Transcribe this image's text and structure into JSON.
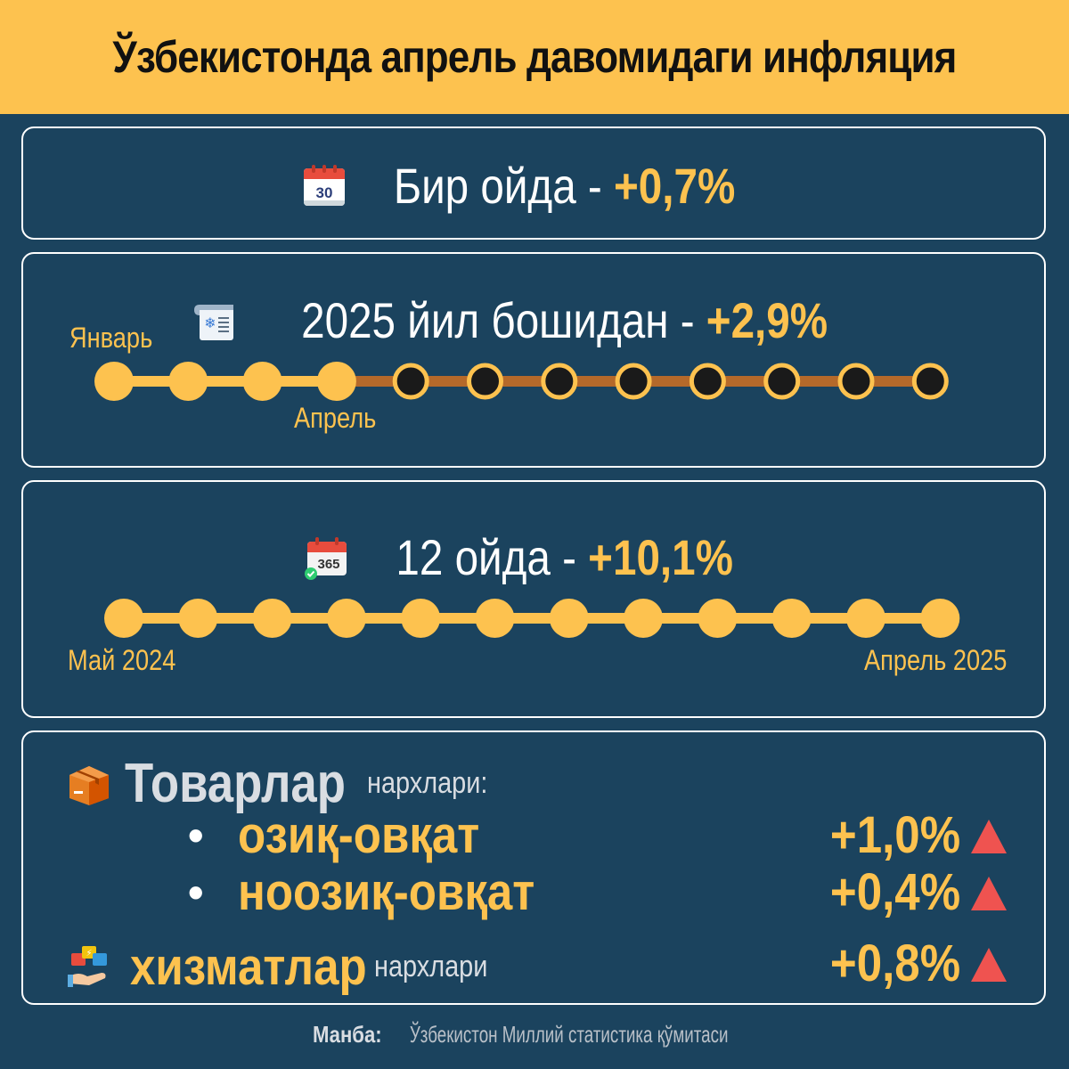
{
  "header": {
    "title": "Ўзбекистонда апрель давомидаги инфляция"
  },
  "monthly": {
    "label": "Бир ойда - ",
    "value": "+0,7%",
    "icon": "calendar-30-icon",
    "calendar_day": "30"
  },
  "ytd": {
    "label": "2025 йил бошидан - ",
    "value": "+2,9%",
    "icon": "calendar-sheet-icon",
    "start_label": "Январь",
    "end_label": "Апрель",
    "total_months": 12,
    "filled_months": 4
  },
  "yearly": {
    "label": "12 ойда - ",
    "value": "+10,1%",
    "icon": "calendar-365-icon",
    "calendar_text": "365",
    "start_label": "Май 2024",
    "end_label": "Апрель 2025",
    "total_months": 12,
    "filled_months": 12
  },
  "goods": {
    "title": "Товарлар",
    "subtitle": "нархлари:",
    "icon": "box-icon",
    "items": [
      {
        "bullet": "•",
        "label": "озиқ-овқат",
        "value": "+1,0%"
      },
      {
        "bullet": "•",
        "label": "ноозиқ-овқат",
        "value": "+0,4%"
      }
    ]
  },
  "services": {
    "title": "хизматлар",
    "subtitle": "нархлари",
    "value": "+0,8%",
    "icon": "services-icon"
  },
  "source": {
    "label": "Манба:",
    "text": " Ўзбекистон Миллий статистика қўмитаси"
  },
  "colors": {
    "accent": "#fdc24f",
    "background": "#1b435e",
    "trend_up": "#ef5350",
    "future_line": "#b5692a",
    "future_dot": "#1a1a1a"
  }
}
